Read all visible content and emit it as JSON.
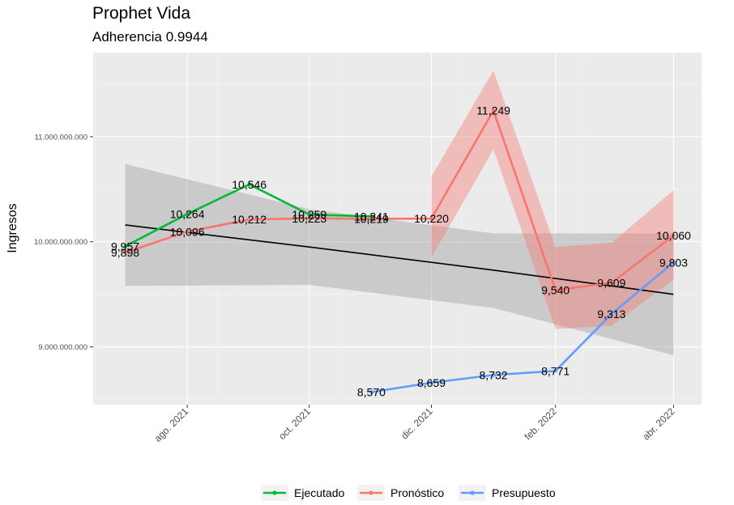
{
  "chart_data": {
    "type": "line",
    "title": "Prophet Vida",
    "subtitle": "Adherencia 0.9944",
    "ylabel": "Ingresos",
    "xlabel": "",
    "x_ticks": [
      "ago. 2021",
      "oct. 2021",
      "dic. 2021",
      "feb. 2022",
      "abr. 2022"
    ],
    "y_ticks": [
      "9.000.000.000",
      "10.000.000.000",
      "11.000.000.000"
    ],
    "y_tick_values": [
      9000000000,
      10000000000,
      11000000000
    ],
    "x_range": [
      "2021-06-15",
      "2022-04-15"
    ],
    "ylim": [
      8450000000,
      11800000000
    ],
    "grid": true,
    "legend_position": "bottom",
    "series": [
      {
        "name": "Ejecutado",
        "color": "#00ba38",
        "points": [
          {
            "x": "2021-07-01",
            "y": 9957000000,
            "label": "9,957"
          },
          {
            "x": "2021-08-01",
            "y": 10264000000,
            "label": "10,264"
          },
          {
            "x": "2021-09-01",
            "y": 10546000000,
            "label": "10,546"
          },
          {
            "x": "2021-10-01",
            "y": 10259000000,
            "label": "10,259"
          },
          {
            "x": "2021-11-01",
            "y": 10241000000,
            "label": "10,241"
          }
        ]
      },
      {
        "name": "Pronóstico",
        "color": "#f8766d",
        "points": [
          {
            "x": "2021-07-01",
            "y": 9898000000,
            "label": "9,898"
          },
          {
            "x": "2021-08-01",
            "y": 10096000000,
            "label": "10,096"
          },
          {
            "x": "2021-09-01",
            "y": 10212000000,
            "label": "10,212"
          },
          {
            "x": "2021-10-01",
            "y": 10223000000,
            "label": "10,223"
          },
          {
            "x": "2021-11-01",
            "y": 10219000000,
            "label": "10,219"
          },
          {
            "x": "2021-12-01",
            "y": 10220000000,
            "label": "10,220"
          },
          {
            "x": "2022-01-01",
            "y": 11249000000,
            "label": "11,249"
          },
          {
            "x": "2022-02-01",
            "y": 9540000000,
            "label": "9,540"
          },
          {
            "x": "2022-03-01",
            "y": 9609000000,
            "label": "9,609"
          },
          {
            "x": "2022-04-01",
            "y": 10060000000,
            "label": "10,060"
          }
        ],
        "band": [
          {
            "x": "2021-12-01",
            "lower": 9850000000,
            "upper": 10620000000
          },
          {
            "x": "2022-01-01",
            "lower": 10880000000,
            "upper": 11630000000
          },
          {
            "x": "2022-02-01",
            "lower": 9170000000,
            "upper": 9950000000
          },
          {
            "x": "2022-03-01",
            "lower": 9200000000,
            "upper": 9990000000
          },
          {
            "x": "2022-04-01",
            "lower": 9640000000,
            "upper": 10490000000
          }
        ]
      },
      {
        "name": "Presupuesto",
        "color": "#619cff",
        "points": [
          {
            "x": "2021-11-01",
            "y": 8570000000,
            "label": "8,570"
          },
          {
            "x": "2021-12-01",
            "y": 8659000000,
            "label": "8,659"
          },
          {
            "x": "2022-01-01",
            "y": 8732000000,
            "label": "8,732"
          },
          {
            "x": "2022-02-01",
            "y": 8771000000,
            "label": "8,771"
          },
          {
            "x": "2022-03-01",
            "y": 9313000000,
            "label": "9,313"
          },
          {
            "x": "2022-04-01",
            "y": 9803000000,
            "label": "9,803"
          }
        ]
      }
    ],
    "trend": {
      "color": "#000000",
      "band_color": "#999999",
      "points": [
        {
          "x": "2021-07-01",
          "y": 10160000000,
          "lower": 9580000000,
          "upper": 10740000000
        },
        {
          "x": "2021-10-01",
          "y": 9950000000,
          "lower": 9590000000,
          "upper": 10310000000
        },
        {
          "x": "2022-01-01",
          "y": 9730000000,
          "lower": 9370000000,
          "upper": 10080000000
        },
        {
          "x": "2022-04-01",
          "y": 9500000000,
          "lower": 8920000000,
          "upper": 10080000000
        }
      ]
    }
  }
}
